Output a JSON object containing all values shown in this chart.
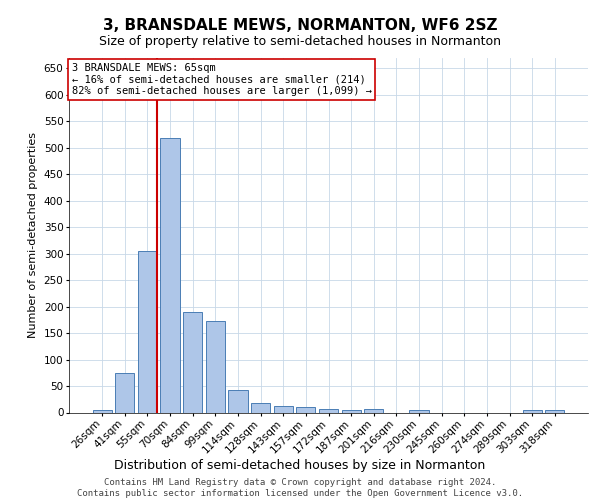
{
  "title": "3, BRANSDALE MEWS, NORMANTON, WF6 2SZ",
  "subtitle": "Size of property relative to semi-detached houses in Normanton",
  "xlabel": "Distribution of semi-detached houses by size in Normanton",
  "ylabel": "Number of semi-detached properties",
  "categories": [
    "26sqm",
    "41sqm",
    "55sqm",
    "70sqm",
    "84sqm",
    "99sqm",
    "114sqm",
    "128sqm",
    "143sqm",
    "157sqm",
    "172sqm",
    "187sqm",
    "201sqm",
    "216sqm",
    "230sqm",
    "245sqm",
    "260sqm",
    "274sqm",
    "289sqm",
    "303sqm",
    "318sqm"
  ],
  "values": [
    5,
    75,
    305,
    518,
    190,
    173,
    43,
    18,
    12,
    10,
    6,
    5,
    7,
    0,
    5,
    0,
    0,
    0,
    0,
    5,
    5
  ],
  "bar_color": "#aec6e8",
  "bar_edge_color": "#4a7db5",
  "ylim": [
    0,
    670
  ],
  "yticks": [
    0,
    50,
    100,
    150,
    200,
    250,
    300,
    350,
    400,
    450,
    500,
    550,
    600,
    650
  ],
  "property_line_x": 2.425,
  "property_line_color": "#cc0000",
  "annotation_text": "3 BRANSDALE MEWS: 65sqm\n← 16% of semi-detached houses are smaller (214)\n82% of semi-detached houses are larger (1,099) →",
  "annotation_box_color": "#cc0000",
  "background_color": "#ffffff",
  "grid_color": "#c8d8e8",
  "footer_text": "Contains HM Land Registry data © Crown copyright and database right 2024.\nContains public sector information licensed under the Open Government Licence v3.0.",
  "title_fontsize": 11,
  "subtitle_fontsize": 9,
  "ylabel_fontsize": 8,
  "xlabel_fontsize": 9,
  "tick_fontsize": 7.5,
  "annotation_fontsize": 7.5,
  "footer_fontsize": 6.5
}
